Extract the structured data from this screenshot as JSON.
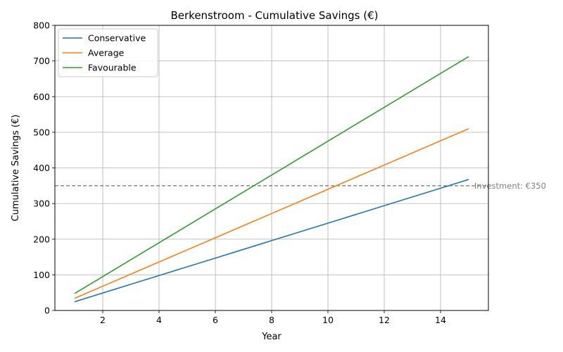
{
  "chart_data": {
    "type": "line",
    "title": "Berkenstroom - Cumulative Savings (€)",
    "xlabel": "Year",
    "ylabel": "Cumulative Savings (€)",
    "xlim": [
      0.3,
      15.7
    ],
    "ylim": [
      0,
      800
    ],
    "xticks": [
      2,
      4,
      6,
      8,
      10,
      12,
      14
    ],
    "yticks": [
      0,
      100,
      200,
      300,
      400,
      500,
      600,
      700,
      800
    ],
    "grid": true,
    "legend_position": "top-left",
    "x": [
      1,
      2,
      3,
      4,
      5,
      6,
      7,
      8,
      9,
      10,
      11,
      12,
      13,
      14,
      15
    ],
    "series": [
      {
        "name": "Conservative",
        "color": "#1f77b4",
        "values": [
          24.5,
          49,
          73.5,
          98,
          122.5,
          147,
          171.5,
          196,
          220.5,
          245,
          269.5,
          294,
          318.5,
          343,
          367.5
        ]
      },
      {
        "name": "Average",
        "color": "#ff7f0e",
        "values": [
          34,
          68,
          102,
          136,
          170,
          204,
          238,
          272,
          306,
          340,
          374,
          408,
          442,
          476,
          510
        ]
      },
      {
        "name": "Favourable",
        "color": "#2ca02c",
        "values": [
          47.5,
          95,
          142.5,
          190,
          237.5,
          285,
          332.5,
          380,
          427.5,
          475,
          522.5,
          570,
          617.5,
          665,
          712.5
        ]
      }
    ],
    "reference_line": {
      "y": 350,
      "label": "Investment: €350",
      "color": "#808080",
      "style": "dashed"
    }
  }
}
